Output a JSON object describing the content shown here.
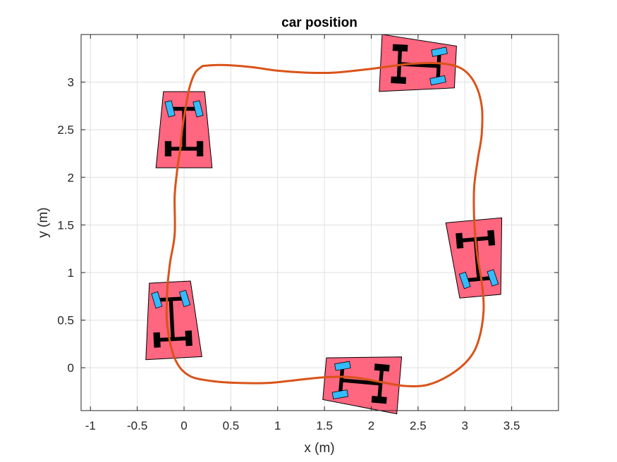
{
  "chart_data": {
    "type": "line",
    "title": "car position",
    "xlabel": "x (m)",
    "ylabel": "y (m)",
    "xlim": [
      -1.1,
      4.0
    ],
    "ylim": [
      -0.45,
      3.5
    ],
    "xticks": [
      -1,
      -0.5,
      0,
      0.5,
      1,
      1.5,
      2,
      2.5,
      3,
      3.5
    ],
    "xtick_labels": [
      "-1",
      "-0.5",
      "0",
      "0.5",
      "1",
      "1.5",
      "2",
      "2.5",
      "3",
      "3.5"
    ],
    "yticks": [
      0,
      0.5,
      1,
      1.5,
      2,
      2.5,
      3
    ],
    "ytick_labels": [
      "0",
      "0.5",
      "1",
      "1.5",
      "2",
      "2.5",
      "3"
    ],
    "grid": true,
    "series": [
      {
        "color": "#d95319",
        "x": [
          0.2,
          0.4,
          0.7,
          1.0,
          1.3,
          1.6,
          2.0,
          2.4,
          2.7,
          2.95,
          3.1,
          3.18,
          3.18,
          3.14,
          3.1,
          3.1,
          3.13,
          3.18,
          3.2,
          3.15,
          3.05,
          2.85,
          2.6,
          2.35,
          2.1,
          1.8,
          1.5,
          1.2,
          0.9,
          0.6,
          0.3,
          0.05,
          -0.1,
          -0.18,
          -0.18,
          -0.15,
          -0.1,
          -0.1,
          -0.07,
          -0.04,
          -0.02,
          0.02,
          0.06,
          0.12,
          0.2
        ],
        "y": [
          3.17,
          3.18,
          3.16,
          3.12,
          3.1,
          3.1,
          3.14,
          3.19,
          3.2,
          3.15,
          3.0,
          2.75,
          2.45,
          2.2,
          1.9,
          1.55,
          1.2,
          0.9,
          0.6,
          0.3,
          0.1,
          -0.07,
          -0.18,
          -0.19,
          -0.15,
          -0.1,
          -0.1,
          -0.13,
          -0.16,
          -0.16,
          -0.14,
          -0.08,
          0.1,
          0.45,
          0.8,
          1.1,
          1.4,
          1.8,
          2.1,
          2.3,
          2.5,
          2.75,
          2.95,
          3.1,
          3.17
        ]
      }
    ],
    "cars": [
      {
        "x": 0.0,
        "y": 2.5,
        "heading_deg": 90,
        "body_color": "#ff6680",
        "front_wheel_color": "#33bbff",
        "rear_wheel_color": "#000000"
      },
      {
        "x": 2.5,
        "y": 3.18,
        "heading_deg": -3,
        "body_color": "#ff6680",
        "front_wheel_color": "#33bbff",
        "rear_wheel_color": "#000000"
      },
      {
        "x": 3.13,
        "y": 1.15,
        "heading_deg": -85,
        "body_color": "#ff6680",
        "front_wheel_color": "#33bbff",
        "rear_wheel_color": "#000000"
      },
      {
        "x": 1.9,
        "y": -0.15,
        "heading_deg": 175,
        "body_color": "#ff6680",
        "front_wheel_color": "#33bbff",
        "rear_wheel_color": "#000000"
      },
      {
        "x": -0.13,
        "y": 0.5,
        "heading_deg": 93,
        "body_color": "#ff6680",
        "front_wheel_color": "#33bbff",
        "rear_wheel_color": "#000000"
      }
    ]
  }
}
